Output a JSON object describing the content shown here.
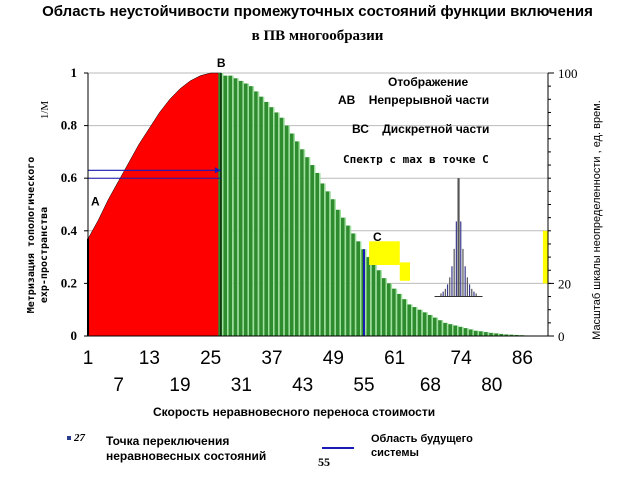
{
  "title_line1": "Область неустойчивости промежуточных  состояний  функции включения",
  "title_line2": "в ПВ многообразии",
  "annotations": {
    "header": "Отображение",
    "ab_code": "АВ",
    "ab_text": "Непрерывной части",
    "bc_code": "ВС",
    "bc_text": "Дискретной части",
    "spectrum": "Спектр с max в точке С"
  },
  "points": {
    "A": "A",
    "B": "B",
    "C": "C"
  },
  "legend": {
    "marker_label": "27",
    "switch_point_line1": "Точка переключения",
    "switch_point_line2": "неравновесных состояний",
    "future_line1": "Область будущего",
    "future_line2": "системы",
    "line_number": "55"
  },
  "colors": {
    "region_ab": "#ff0000",
    "region_bc": "#2e8b2e",
    "bar_stripe": "#9be29b",
    "spectrum_yellow": "#ffff00",
    "blue": "#1a1ab4"
  },
  "chart_data": {
    "type": "area",
    "title": "Область неустойчивости промежуточных  состояний  функции включения в ПВ многообразии",
    "xlabel": "Скорость неравновесного переноса  стоимости",
    "ylabel_left_unit": "1/M",
    "ylabel_left": "Метризация топологического exp-пространства",
    "ylabel_right": "Масштаб шкалы  неопределенности     , ед. врем.",
    "x_ticks_row1": [
      "1",
      "13",
      "25",
      "37",
      "49",
      "61",
      "74",
      "86"
    ],
    "x_ticks_row2": [
      "7",
      "19",
      "31",
      "43",
      "55",
      "68",
      "80"
    ],
    "xlim": [
      1,
      91
    ],
    "y_left_ticks": [
      "0",
      "0.2",
      "0.4",
      "0.6",
      "0.8",
      "1"
    ],
    "y_right_ticks": [
      "0",
      "20",
      "100"
    ],
    "ylim": [
      0,
      1
    ],
    "grid": true,
    "series": [
      {
        "x": [
          1,
          3,
          5,
          7,
          9,
          11,
          13,
          15,
          17,
          19,
          21,
          23,
          25,
          27
        ],
        "values": [
          0.37,
          0.44,
          0.52,
          0.59,
          0.66,
          0.73,
          0.79,
          0.85,
          0.9,
          0.94,
          0.97,
          0.99,
          1.0,
          1.0
        ]
      },
      {
        "x": [
          27,
          28,
          29,
          30,
          31,
          32,
          33,
          34,
          35,
          36,
          37,
          38,
          39,
          40,
          41,
          42,
          43,
          44,
          45,
          46,
          47,
          48,
          49,
          50,
          51,
          52,
          53,
          54,
          55,
          56,
          57,
          58,
          59,
          60,
          61,
          62,
          63,
          64,
          65,
          66,
          67,
          68,
          69,
          70,
          71,
          72,
          73,
          74,
          75,
          76,
          77,
          78,
          79,
          80,
          81,
          82,
          83,
          84,
          85,
          86,
          87,
          88
        ],
        "values": [
          1.0,
          0.99,
          0.99,
          0.98,
          0.97,
          0.96,
          0.95,
          0.93,
          0.91,
          0.89,
          0.87,
          0.85,
          0.83,
          0.8,
          0.77,
          0.74,
          0.71,
          0.68,
          0.65,
          0.62,
          0.58,
          0.55,
          0.52,
          0.48,
          0.45,
          0.42,
          0.39,
          0.36,
          0.33,
          0.3,
          0.27,
          0.25,
          0.22,
          0.2,
          0.18,
          0.16,
          0.14,
          0.12,
          0.11,
          0.1,
          0.09,
          0.08,
          0.07,
          0.06,
          0.05,
          0.045,
          0.04,
          0.035,
          0.03,
          0.025,
          0.02,
          0.018,
          0.015,
          0.012,
          0.01,
          0.008,
          0.006,
          0.005,
          0.004,
          0.003,
          0.002,
          0.001
        ]
      }
    ]
  }
}
